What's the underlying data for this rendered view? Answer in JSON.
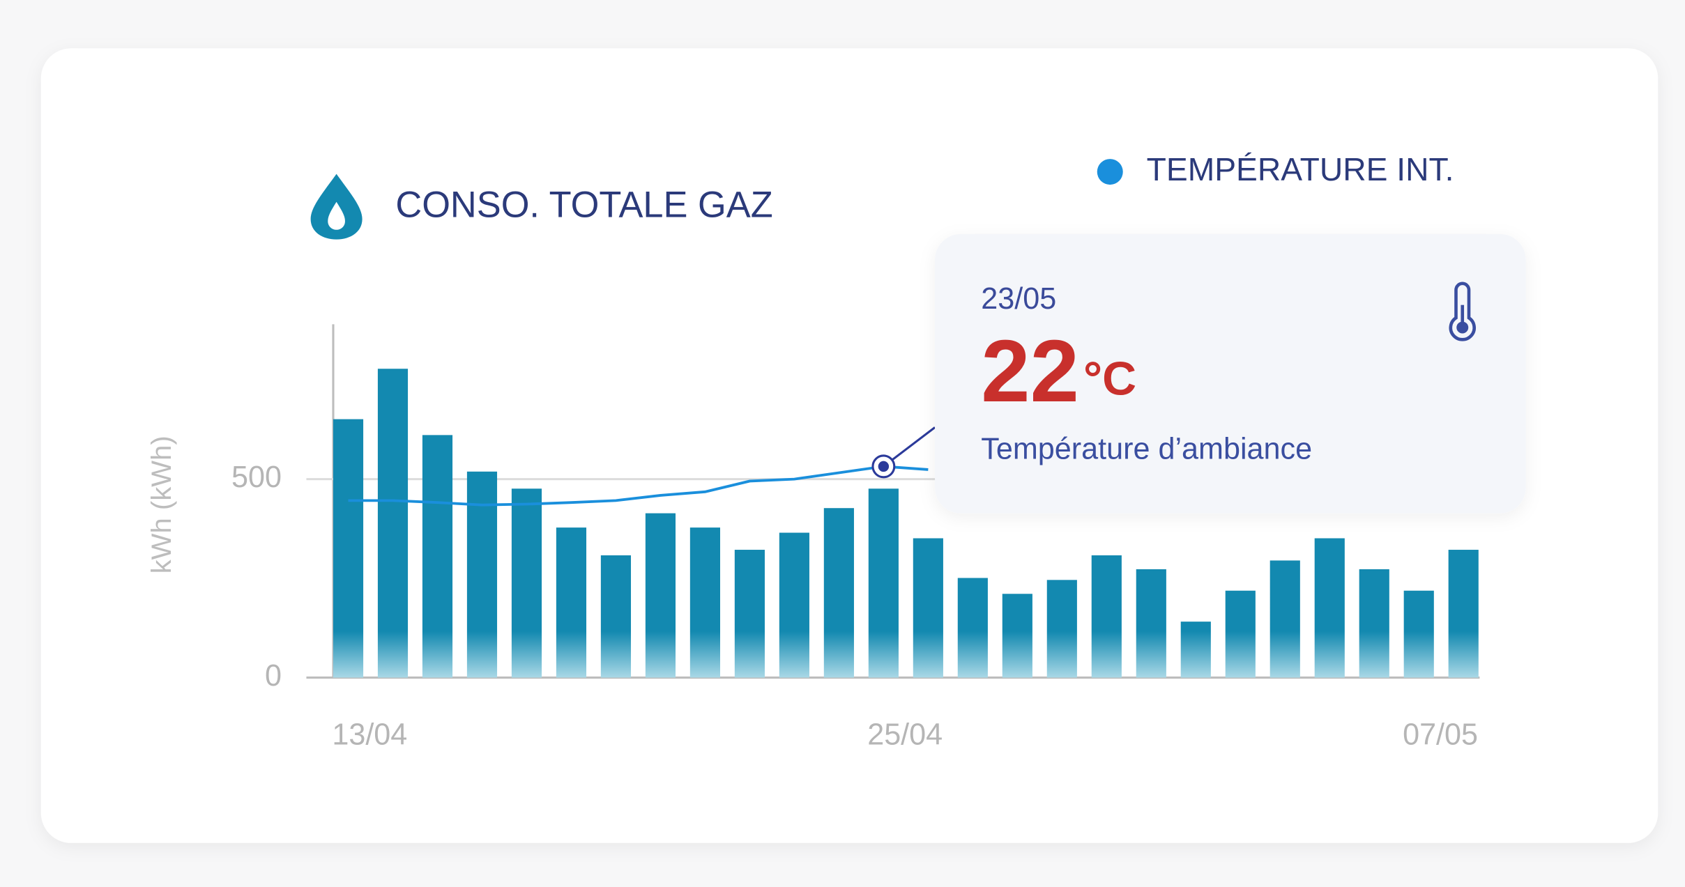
{
  "chart_data": {
    "type": "bar",
    "y_label": "kWh (kWh)",
    "categories": [
      "13/04",
      null,
      null,
      null,
      null,
      null,
      null,
      null,
      null,
      null,
      null,
      null,
      "25/04",
      null,
      null,
      null,
      null,
      null,
      null,
      null,
      null,
      null,
      null,
      null,
      "07/05",
      null
    ],
    "series": [
      {
        "name": "CONSO. TOTALE GAZ",
        "type": "bar",
        "color": "#1389b0",
        "values": [
          651,
          778,
          611,
          519,
          476,
          378,
          308,
          414,
          378,
          322,
          365,
          427,
          476,
          351,
          251,
          211,
          246,
          308,
          273,
          141,
          219,
          295,
          351,
          273,
          219,
          322
        ]
      },
      {
        "name": "TEMPÉRATURE INT.",
        "type": "line",
        "color": "#1a8fdc",
        "values": [
          446,
          446,
          441,
          435,
          437,
          441,
          446,
          459,
          468,
          495,
          500,
          516,
          532,
          524,
          null,
          null,
          null,
          null,
          null,
          null,
          null,
          null,
          null,
          null,
          null,
          null
        ]
      }
    ],
    "ylim": [
      0,
      890
    ],
    "yticks": [
      0,
      500
    ],
    "grid": true,
    "tooltip": {
      "index": 12,
      "date": "23/05",
      "value": 22,
      "unit": "°C",
      "label": "Température d’ambiance"
    }
  }
}
